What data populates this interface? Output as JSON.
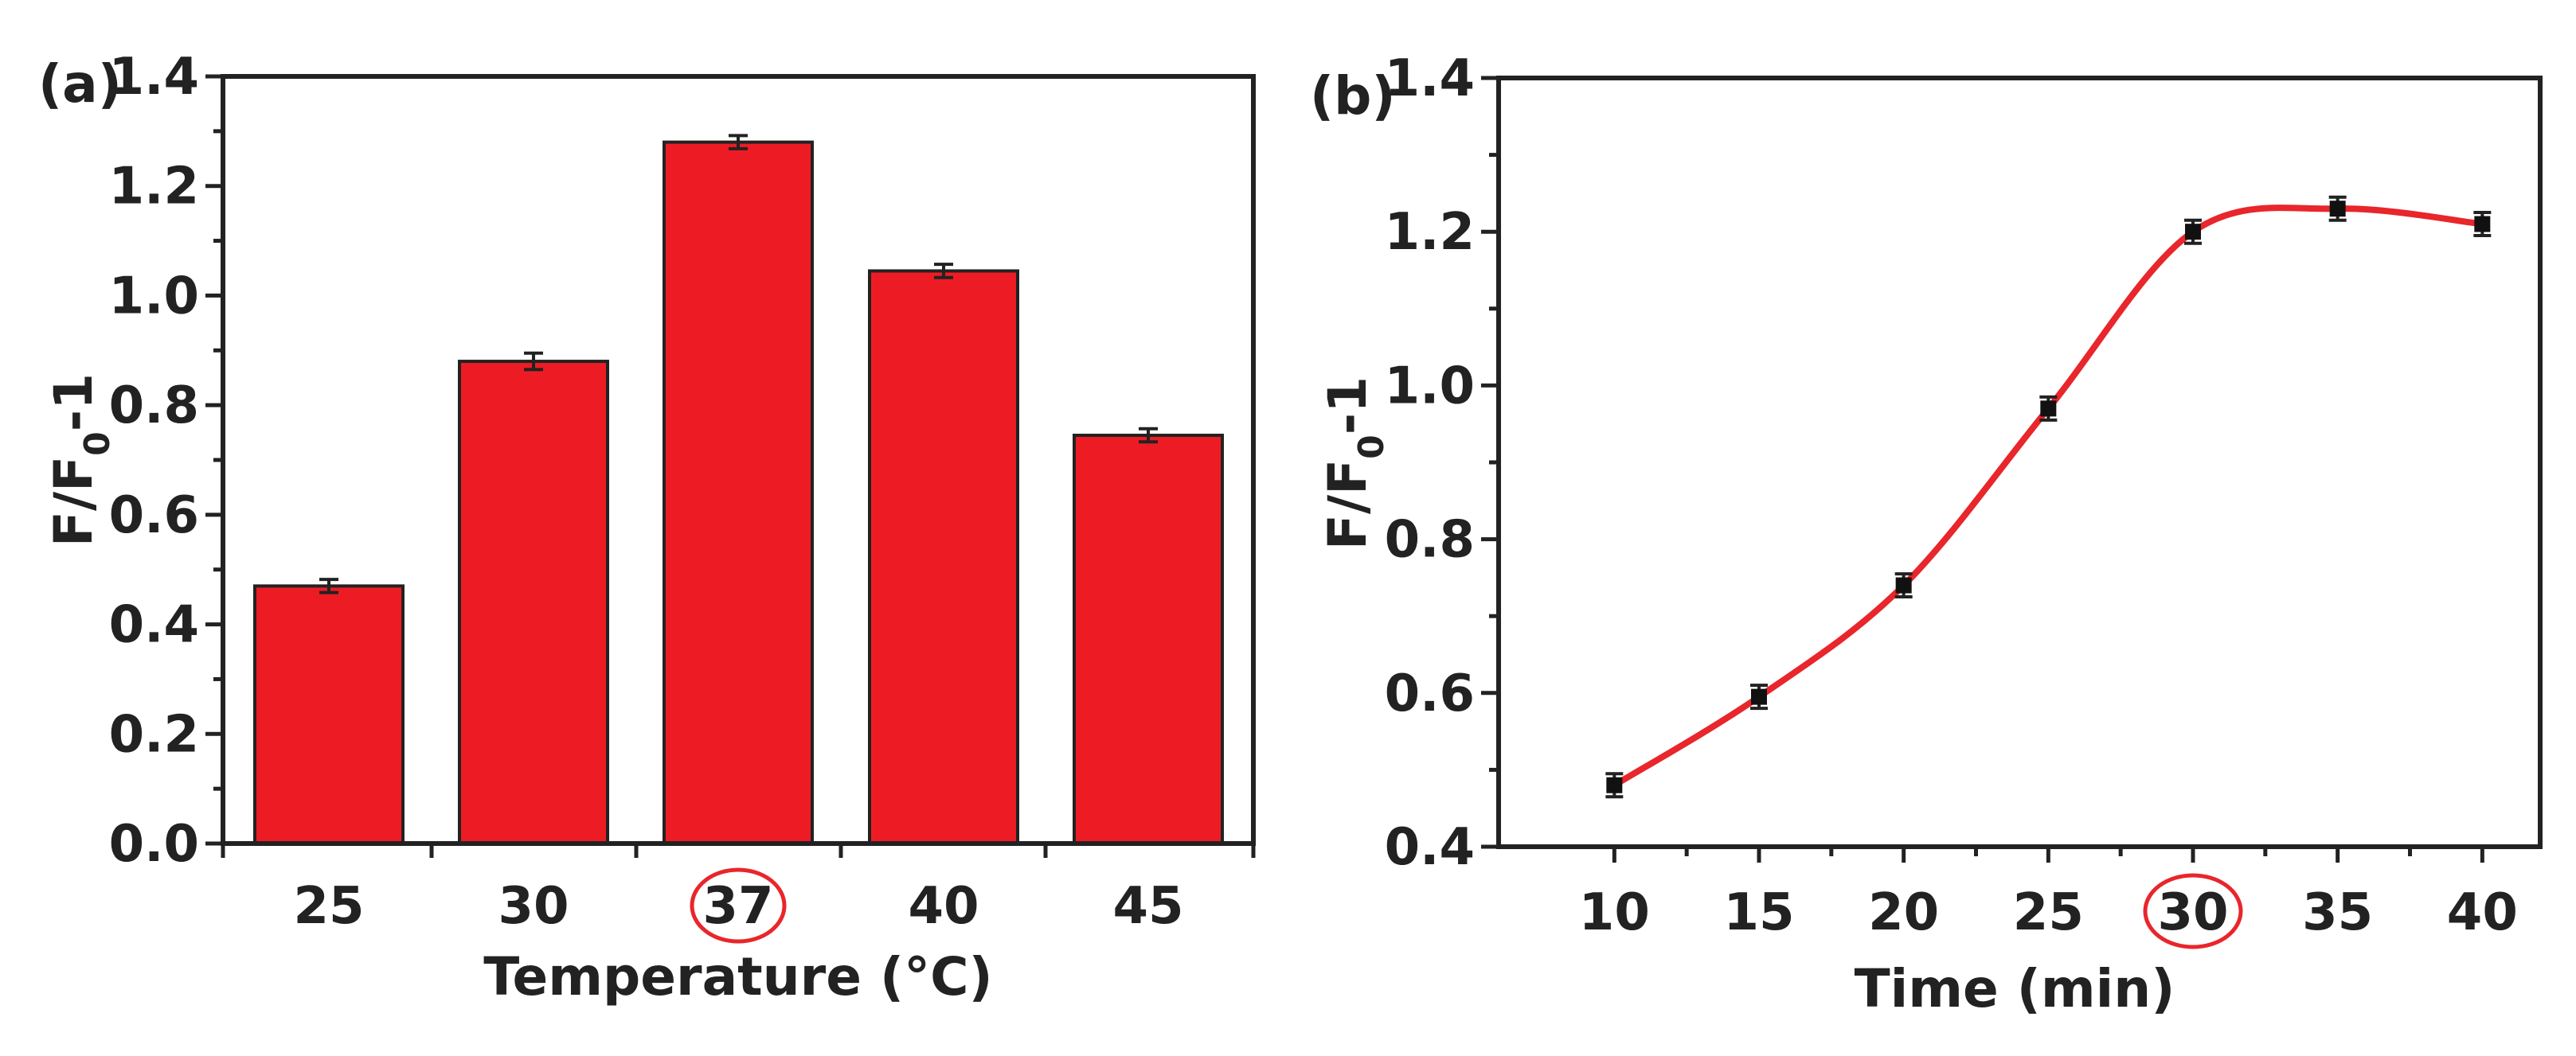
{
  "chart_data": [
    {
      "panel": "(a)",
      "type": "bar",
      "categories": [
        "25",
        "30",
        "37",
        "40",
        "45"
      ],
      "values": [
        0.47,
        0.88,
        1.28,
        1.045,
        0.745
      ],
      "errors": [
        0.012,
        0.015,
        0.012,
        0.012,
        0.012
      ],
      "xlabel": "Temperature (°C)",
      "ylabel_main": "F/F",
      "ylabel_sub": "0",
      "ylabel_tail": "-1",
      "ylim": [
        0.0,
        1.4
      ],
      "yticks": [
        "0.0",
        "0.2",
        "0.4",
        "0.6",
        "0.8",
        "1.0",
        "1.2",
        "1.4"
      ],
      "color": "#ed1c24",
      "highlighted_category": "37",
      "highlight_color": "#e8262b"
    },
    {
      "panel": "(b)",
      "type": "scatter",
      "x": [
        10,
        15,
        20,
        25,
        30,
        35,
        40
      ],
      "y": [
        0.48,
        0.595,
        0.74,
        0.97,
        1.2,
        1.23,
        1.21
      ],
      "errors": [
        0.015,
        0.015,
        0.015,
        0.015,
        0.015,
        0.015,
        0.015
      ],
      "fit_curve": true,
      "fit_color": "#e8262b",
      "xlabel": "Time (min)",
      "ylabel_main": "F/F",
      "ylabel_sub": "0",
      "ylabel_tail": "-1",
      "xlim": [
        6,
        42
      ],
      "ylim": [
        0.4,
        1.4
      ],
      "xticks": [
        "10",
        "15",
        "20",
        "25",
        "30",
        "35",
        "40"
      ],
      "yticks": [
        "0.4",
        "0.6",
        "0.8",
        "1.0",
        "1.2",
        "1.4"
      ],
      "highlighted_x": "30",
      "highlight_color": "#e8262b"
    }
  ]
}
